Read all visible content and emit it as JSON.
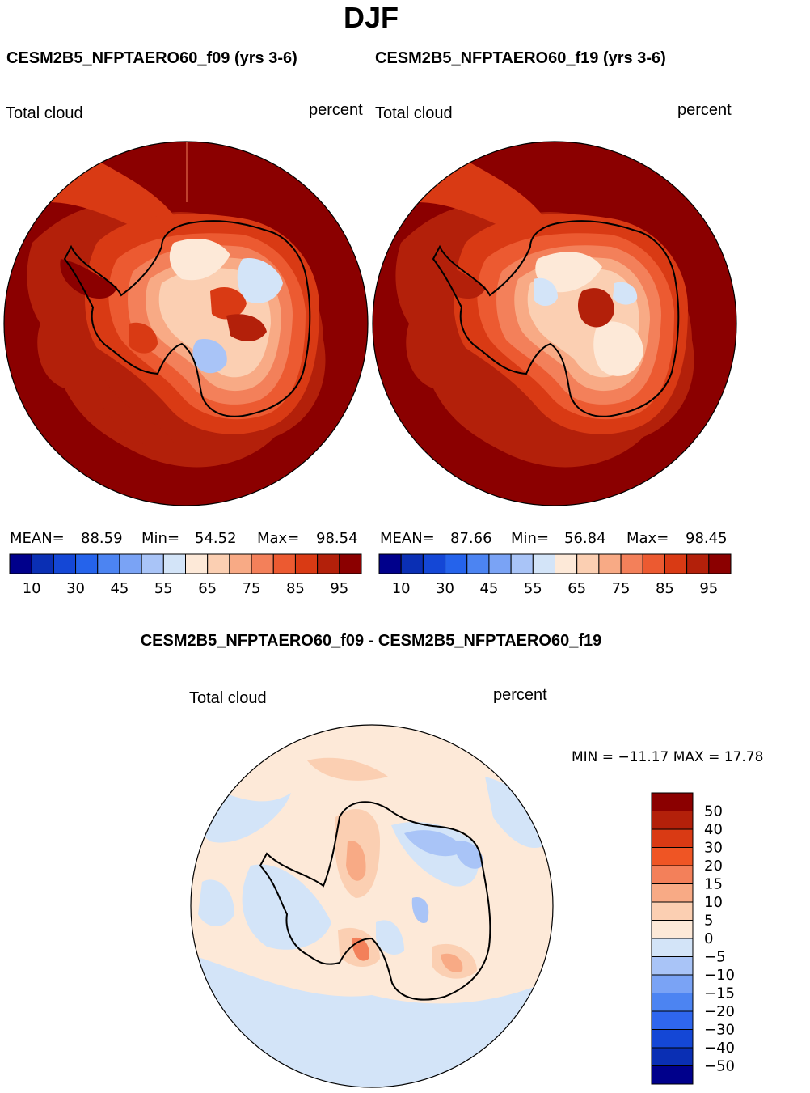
{
  "chart_data": [
    {
      "type": "polar-contour-map",
      "title": "CESM2B5_NFPTAERO60_f09 (yrs 3-6)",
      "left_label": "Total cloud",
      "right_label": "percent",
      "stats": {
        "mean_label": "MEAN=",
        "mean": "88.59",
        "min_label": "Min=",
        "min": "54.52",
        "max_label": "Max=",
        "max": "98.54"
      },
      "levels": [
        10,
        20,
        30,
        40,
        45,
        50,
        55,
        60,
        65,
        70,
        75,
        80,
        85,
        90,
        95
      ],
      "tick_labels": [
        "10",
        "30",
        "45",
        "55",
        "65",
        "75",
        "85",
        "95"
      ]
    },
    {
      "type": "polar-contour-map",
      "title": "CESM2B5_NFPTAERO60_f19 (yrs 3-6)",
      "left_label": "Total cloud",
      "right_label": "percent",
      "stats": {
        "mean_label": "MEAN=",
        "mean": "87.66",
        "min_label": "Min=",
        "min": "56.84",
        "max_label": "Max=",
        "max": "98.45"
      },
      "levels": [
        10,
        20,
        30,
        40,
        45,
        50,
        55,
        60,
        65,
        70,
        75,
        80,
        85,
        90,
        95
      ],
      "tick_labels": [
        "10",
        "30",
        "45",
        "55",
        "65",
        "75",
        "85",
        "95"
      ]
    },
    {
      "type": "polar-contour-map",
      "title": "CESM2B5_NFPTAERO60_f09 - CESM2B5_NFPTAERO60_f19",
      "left_label": "Total cloud",
      "right_label": "percent",
      "stats_text": "MIN = −11.17 MAX =   17.78",
      "levels": [
        -50,
        -40,
        -30,
        -20,
        -15,
        -10,
        -5,
        0,
        5,
        10,
        15,
        20,
        30,
        40,
        50
      ],
      "tick_labels": [
        "50",
        "40",
        "30",
        "20",
        "15",
        "10",
        "5",
        "0",
        "−5",
        "−10",
        "−15",
        "−20",
        "−30",
        "−40",
        "−50"
      ]
    }
  ],
  "header": {
    "season": "DJF"
  },
  "colors": {
    "abs_scale": [
      "#00008b",
      "#0a2fb4",
      "#1447d6",
      "#2563eb",
      "#4c84f2",
      "#7aa3f5",
      "#a9c4f7",
      "#d3e4f8",
      "#fde9d8",
      "#fbcfb2",
      "#f8aa85",
      "#f3805a",
      "#ec5a31",
      "#d93a14",
      "#b3200a",
      "#8b0000"
    ],
    "diff_scale": [
      "#8b0000",
      "#b3200a",
      "#d93a14",
      "#ef5524",
      "#f3805a",
      "#f8aa85",
      "#fbcfb2",
      "#fde9d8",
      "#d3e4f8",
      "#a9c4f7",
      "#7aa3f5",
      "#4c84f2",
      "#2f66ee",
      "#1447d6",
      "#0a2fb4",
      "#00008b"
    ],
    "coastline": "#000000"
  }
}
